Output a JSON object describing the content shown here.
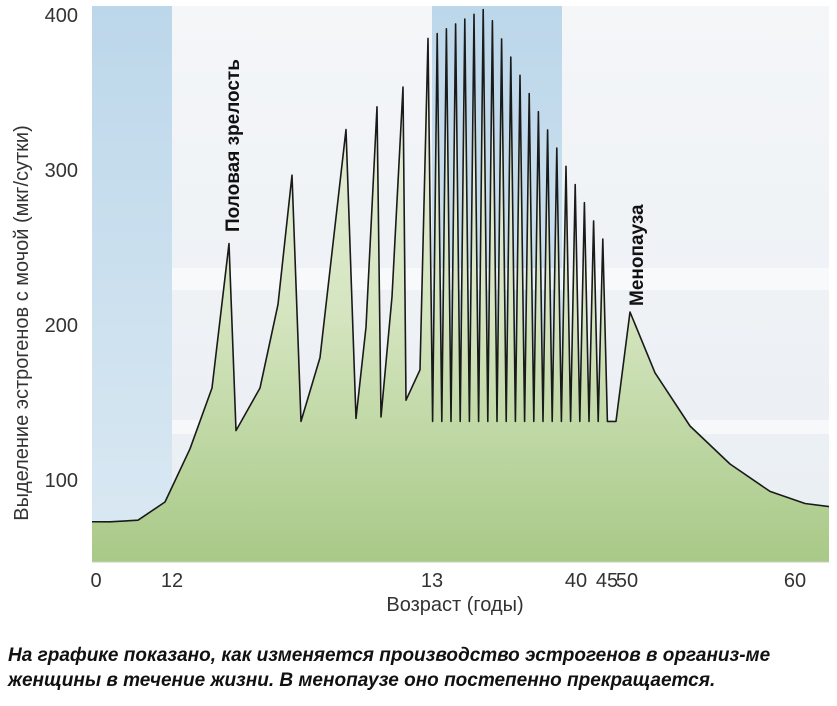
{
  "chart_data": {
    "type": "line",
    "title": "",
    "xlabel": "Возраст (годы)",
    "ylabel": "Выделение эстрогенов с мочой (мкг/сутки)",
    "ylim": [
      50,
      400
    ],
    "yticks": [
      100,
      200,
      300,
      400
    ],
    "xtick_labels": [
      "0",
      "12",
      "13",
      "40",
      "45",
      "50",
      "60"
    ],
    "grid": false,
    "legend": "none",
    "annotations": [
      "Половая зрелость",
      "Менопауза"
    ],
    "series": [
      {
        "values": [
          62,
          62,
          63,
          75,
          110,
          150,
          245,
          122,
          150,
          205,
          290,
          128,
          170,
          320,
          130,
          190,
          335,
          131,
          210,
          348,
          142,
          380,
          128,
          400,
          128,
          380,
          128,
          345,
          128,
          300,
          128,
          270,
          128,
          236,
          128,
          200,
          160,
          125,
          100,
          82,
          74,
          72
        ]
      }
    ],
    "colors": {
      "line": "#1a1a1a",
      "fill_top": "#dfe9cf",
      "fill_bottom": "#a9c98a",
      "childhood_band": "#c5dded",
      "reproductive_band": "#c5dded"
    }
  },
  "caption": "На графике показано, как изменяется производство эстрогенов в организ-ме женщины в течение жизни. В менопаузе оно постепенно прекращается."
}
